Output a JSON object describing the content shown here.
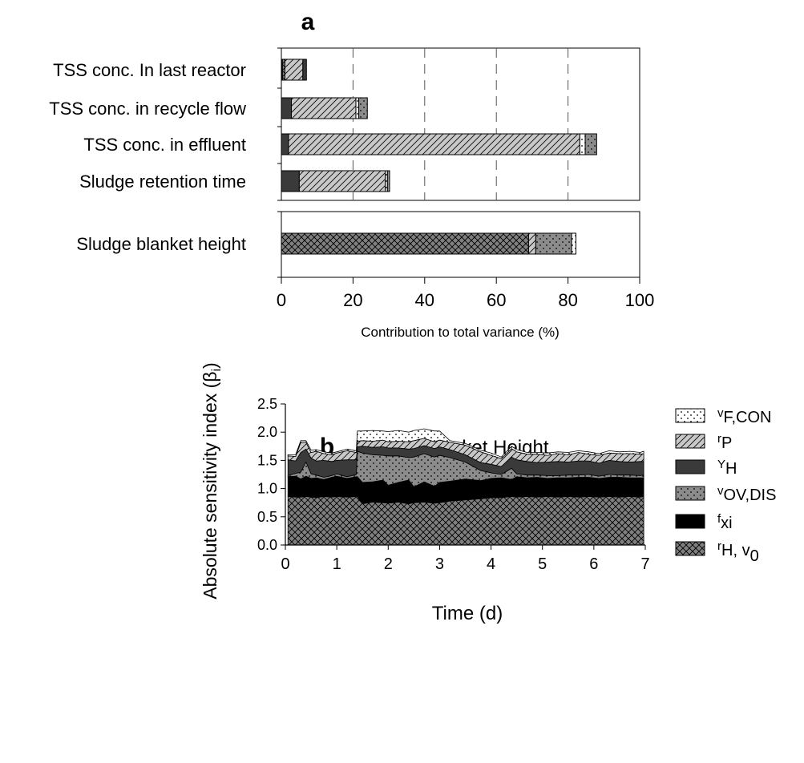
{
  "chart_data": [
    {
      "type": "bar",
      "panel_label": "a",
      "orientation": "horizontal",
      "stacked": true,
      "xlabel": "Contribution to total variance (%)",
      "xlim": [
        0,
        100
      ],
      "x_ticks": [
        "0",
        "20",
        "40",
        "60",
        "80",
        "100"
      ],
      "grid": "vertical dashed",
      "groups": [
        {
          "categories": [
            "TSS conc. In last reactor",
            "TSS conc. in recycle flow",
            "TSS conc. in effluent",
            "Sludge retention time"
          ]
        },
        {
          "categories": [
            "Sludge blanket height"
          ]
        }
      ],
      "bars": [
        {
          "category": "TSS conc. In last reactor",
          "segments": [
            {
              "fill": "fxi",
              "value": 0.3
            },
            {
              "fill": "rH_v0",
              "value": 0.7
            },
            {
              "fill": "rP",
              "value": 5.0
            },
            {
              "fill": "YH",
              "value": 1.0
            }
          ]
        },
        {
          "category": "TSS conc. in recycle flow",
          "segments": [
            {
              "fill": "YH",
              "value": 2.8
            },
            {
              "fill": "rP",
              "value": 18.0
            },
            {
              "fill": "vF_CON",
              "value": 0.8
            },
            {
              "fill": "vOV_DIS",
              "value": 2.4
            }
          ]
        },
        {
          "category": "TSS conc. in effluent",
          "segments": [
            {
              "fill": "YH",
              "value": 2.0
            },
            {
              "fill": "rP",
              "value": 81.3
            },
            {
              "fill": "vF_CON",
              "value": 1.5
            },
            {
              "fill": "vOV_DIS",
              "value": 3.2
            }
          ]
        },
        {
          "category": "Sludge retention time",
          "segments": [
            {
              "fill": "YH",
              "value": 5.0
            },
            {
              "fill": "rP",
              "value": 24.0
            },
            {
              "fill": "vF_CON",
              "value": 0.6
            },
            {
              "fill": "vOV_DIS",
              "value": 0.6
            }
          ]
        },
        {
          "category": "Sludge blanket height",
          "segments": [
            {
              "fill": "rH_v0",
              "value": 69.0
            },
            {
              "fill": "rP",
              "value": 2.0
            },
            {
              "fill": "vOV_DIS",
              "value": 10.0
            },
            {
              "fill": "vF_CON",
              "value": 1.2
            }
          ]
        }
      ]
    },
    {
      "type": "area",
      "stacked": true,
      "panel_label": "b",
      "title": "Sludge Blanket Height",
      "xlabel": "Time (d)",
      "ylabel": "Absolute sensitivity index (βi)",
      "xlim": [
        0,
        7
      ],
      "ylim": [
        0,
        2.5
      ],
      "x_ticks": [
        "0",
        "1",
        "2",
        "3",
        "4",
        "5",
        "6",
        "7"
      ],
      "y_ticks": [
        "0.0",
        "0.5",
        "1.0",
        "1.5",
        "2.0",
        "2.5"
      ],
      "x": [
        0.05,
        0.2,
        0.3,
        0.4,
        0.5,
        0.6,
        0.75,
        0.9,
        1.0,
        1.2,
        1.38,
        1.4,
        1.5,
        1.7,
        1.9,
        2.0,
        2.2,
        2.4,
        2.5,
        2.7,
        2.9,
        3.0,
        3.2,
        3.5,
        3.8,
        4.0,
        4.2,
        4.4,
        4.5,
        4.7,
        4.9,
        5.1,
        5.3,
        5.5,
        5.7,
        5.9,
        6.1,
        6.3,
        6.5,
        6.7,
        6.9,
        6.97
      ],
      "series": [
        {
          "key": "rH_v0",
          "label": "rH, v0",
          "values": [
            0.86,
            0.85,
            0.85,
            0.86,
            0.85,
            0.84,
            0.86,
            0.85,
            0.86,
            0.85,
            0.86,
            0.86,
            0.73,
            0.76,
            0.75,
            0.74,
            0.76,
            0.73,
            0.75,
            0.76,
            0.74,
            0.75,
            0.78,
            0.8,
            0.82,
            0.84,
            0.84,
            0.86,
            0.85,
            0.86,
            0.85,
            0.86,
            0.85,
            0.86,
            0.85,
            0.86,
            0.85,
            0.86,
            0.85,
            0.86,
            0.85,
            0.86
          ]
        },
        {
          "key": "fxi",
          "label": "fxi",
          "values": [
            0.35,
            0.37,
            0.32,
            0.36,
            0.33,
            0.35,
            0.3,
            0.35,
            0.36,
            0.33,
            0.35,
            0.35,
            0.38,
            0.36,
            0.4,
            0.32,
            0.35,
            0.42,
            0.28,
            0.36,
            0.3,
            0.36,
            0.35,
            0.37,
            0.32,
            0.34,
            0.35,
            0.3,
            0.36,
            0.33,
            0.35,
            0.32,
            0.34,
            0.33,
            0.35,
            0.34,
            0.33,
            0.34,
            0.35,
            0.33,
            0.34,
            0.33
          ]
        },
        {
          "key": "vOV_DIS",
          "label": "vOV,DIS",
          "values": [
            0.02,
            0.05,
            0.12,
            0.25,
            0.08,
            0.05,
            0.04,
            0.03,
            0.04,
            0.03,
            0.04,
            0.45,
            0.52,
            0.48,
            0.44,
            0.52,
            0.47,
            0.4,
            0.53,
            0.5,
            0.52,
            0.48,
            0.42,
            0.3,
            0.18,
            0.1,
            0.06,
            0.2,
            0.05,
            0.05,
            0.04,
            0.05,
            0.04,
            0.05,
            0.04,
            0.05,
            0.04,
            0.05,
            0.04,
            0.05,
            0.04,
            0.05
          ]
        },
        {
          "key": "YH",
          "label": "YH",
          "values": [
            0.28,
            0.22,
            0.35,
            0.23,
            0.28,
            0.25,
            0.3,
            0.25,
            0.24,
            0.3,
            0.26,
            0.08,
            0.12,
            0.13,
            0.15,
            0.14,
            0.14,
            0.15,
            0.15,
            0.14,
            0.15,
            0.15,
            0.14,
            0.13,
            0.14,
            0.15,
            0.14,
            0.2,
            0.25,
            0.24,
            0.22,
            0.24,
            0.25,
            0.23,
            0.25,
            0.24,
            0.23,
            0.25,
            0.24,
            0.23,
            0.25,
            0.24
          ]
        },
        {
          "key": "rP",
          "label": "rP",
          "values": [
            0.07,
            0.08,
            0.18,
            0.12,
            0.1,
            0.17,
            0.12,
            0.12,
            0.13,
            0.16,
            0.13,
            0.1,
            0.1,
            0.11,
            0.12,
            0.11,
            0.12,
            0.13,
            0.14,
            0.13,
            0.12,
            0.12,
            0.13,
            0.17,
            0.19,
            0.16,
            0.14,
            0.15,
            0.14,
            0.13,
            0.15,
            0.12,
            0.14,
            0.13,
            0.15,
            0.12,
            0.14,
            0.13,
            0.14,
            0.15,
            0.13,
            0.14
          ]
        },
        {
          "key": "vF_CON",
          "label": "vF,CON",
          "values": [
            0.02,
            0.03,
            0.03,
            0.03,
            0.04,
            0.03,
            0.03,
            0.03,
            0.02,
            0.03,
            0.03,
            0.18,
            0.17,
            0.19,
            0.16,
            0.18,
            0.19,
            0.17,
            0.18,
            0.17,
            0.19,
            0.16,
            0.03,
            0.03,
            0.03,
            0.04,
            0.03,
            0.04,
            0.04,
            0.03,
            0.03,
            0.04,
            0.03,
            0.04,
            0.03,
            0.04,
            0.03,
            0.04,
            0.03,
            0.04,
            0.03,
            0.04
          ]
        }
      ]
    }
  ],
  "legend": [
    {
      "key": "vF_CON",
      "symbol": "v",
      "sub": "F,CON",
      "after": ""
    },
    {
      "key": "rP",
      "symbol": "r",
      "sub": "P",
      "after": ""
    },
    {
      "key": "YH",
      "symbol": "Y",
      "sub": "H",
      "after": ""
    },
    {
      "key": "vOV_DIS",
      "symbol": "v",
      "sub": "OV,DIS",
      "after": ""
    },
    {
      "key": "fxi",
      "symbol": "f",
      "sub": "xi",
      "after": ""
    },
    {
      "key": "rH_v0",
      "symbol": "r",
      "sub": "H",
      "after": ", v",
      "sub2": "0"
    }
  ],
  "ylabel_parts": {
    "main": "Absolute sensitivity index (β",
    "sub": "i",
    "end": ")"
  },
  "fills": {
    "rH_v0": {
      "base": "#808080",
      "pattern": "crosshatch",
      "color": "#000000"
    },
    "fxi": {
      "base": "#000000",
      "pattern": "solid",
      "color": "#000000"
    },
    "vOV_DIS": {
      "base": "#8c8c8c",
      "pattern": "dots",
      "color": "#000000"
    },
    "YH": {
      "base": "#3a3a3a",
      "pattern": "solid",
      "color": "#3a3a3a"
    },
    "rP": {
      "base": "#c8c8c8",
      "pattern": "diagonal",
      "color": "#000000"
    },
    "vF_CON": {
      "base": "#ffffff",
      "pattern": "dots",
      "color": "#000000"
    }
  }
}
